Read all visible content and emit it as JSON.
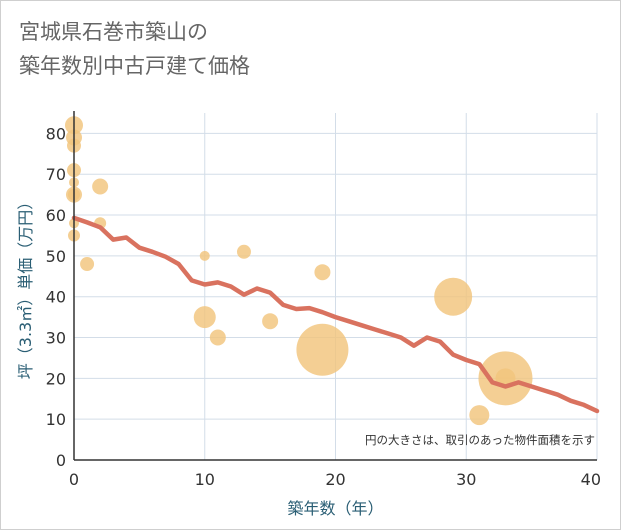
{
  "title_lines": [
    "宮城県石巻市築山の",
    "築年数別中古戸建て価格"
  ],
  "chart_data": {
    "type": "scatter",
    "xlabel": "築年数（年）",
    "ylabel": "坪（3.3㎡）単価（万円）",
    "xlim": [
      0,
      40
    ],
    "ylim": [
      0,
      85
    ],
    "x_ticks": [
      "0",
      "10",
      "20",
      "30",
      "40"
    ],
    "y_ticks": [
      "0",
      "10",
      "20",
      "30",
      "40",
      "50",
      "60",
      "70",
      "80"
    ],
    "note": "円の大きさは、取引のあった物件面積を示す",
    "grid": true,
    "colors": {
      "bubble": "#f2c47c",
      "line": "#d9725f",
      "grid": "#d3dde8",
      "axis": "#333333"
    },
    "scatter_points": [
      {
        "x": 0,
        "y": 82,
        "size": 9
      },
      {
        "x": 0,
        "y": 79,
        "size": 8
      },
      {
        "x": 0,
        "y": 77,
        "size": 7
      },
      {
        "x": 0,
        "y": 71,
        "size": 7
      },
      {
        "x": 0,
        "y": 68,
        "size": 5
      },
      {
        "x": 0,
        "y": 65,
        "size": 8
      },
      {
        "x": 0,
        "y": 65,
        "size": 6
      },
      {
        "x": 0,
        "y": 58,
        "size": 5
      },
      {
        "x": 0,
        "y": 55,
        "size": 6
      },
      {
        "x": 1,
        "y": 48,
        "size": 7
      },
      {
        "x": 2,
        "y": 67,
        "size": 8
      },
      {
        "x": 2,
        "y": 58,
        "size": 6
      },
      {
        "x": 10,
        "y": 50,
        "size": 5
      },
      {
        "x": 10,
        "y": 35,
        "size": 11
      },
      {
        "x": 11,
        "y": 30,
        "size": 8
      },
      {
        "x": 13,
        "y": 51,
        "size": 7
      },
      {
        "x": 15,
        "y": 34,
        "size": 8
      },
      {
        "x": 19,
        "y": 46,
        "size": 8
      },
      {
        "x": 19,
        "y": 27,
        "size": 26
      },
      {
        "x": 29,
        "y": 40,
        "size": 19
      },
      {
        "x": 31,
        "y": 11,
        "size": 10
      },
      {
        "x": 33,
        "y": 20,
        "size": 10
      },
      {
        "x": 33,
        "y": 20,
        "size": 27
      }
    ],
    "trend_line": [
      {
        "x": 0,
        "y": 59.3
      },
      {
        "x": 1,
        "y": 58.2
      },
      {
        "x": 2,
        "y": 57.0
      },
      {
        "x": 3,
        "y": 54.0
      },
      {
        "x": 4,
        "y": 54.5
      },
      {
        "x": 5,
        "y": 52.0
      },
      {
        "x": 6,
        "y": 51.0
      },
      {
        "x": 7,
        "y": 49.8
      },
      {
        "x": 8,
        "y": 48.0
      },
      {
        "x": 9,
        "y": 44.0
      },
      {
        "x": 10,
        "y": 43.0
      },
      {
        "x": 11,
        "y": 43.5
      },
      {
        "x": 12,
        "y": 42.5
      },
      {
        "x": 13,
        "y": 40.5
      },
      {
        "x": 14,
        "y": 42.0
      },
      {
        "x": 15,
        "y": 41.0
      },
      {
        "x": 16,
        "y": 38.0
      },
      {
        "x": 17,
        "y": 37.0
      },
      {
        "x": 18,
        "y": 37.2
      },
      {
        "x": 19,
        "y": 36.2
      },
      {
        "x": 20,
        "y": 35.0
      },
      {
        "x": 21,
        "y": 34.0
      },
      {
        "x": 22,
        "y": 33.0
      },
      {
        "x": 23,
        "y": 32.0
      },
      {
        "x": 24,
        "y": 31.0
      },
      {
        "x": 25,
        "y": 30.0
      },
      {
        "x": 26,
        "y": 28.0
      },
      {
        "x": 27,
        "y": 30.0
      },
      {
        "x": 28,
        "y": 29.0
      },
      {
        "x": 29,
        "y": 25.8
      },
      {
        "x": 30,
        "y": 24.5
      },
      {
        "x": 31,
        "y": 23.5
      },
      {
        "x": 32,
        "y": 19.0
      },
      {
        "x": 33,
        "y": 18.0
      },
      {
        "x": 34,
        "y": 19.0
      },
      {
        "x": 35,
        "y": 18.0
      },
      {
        "x": 36,
        "y": 17.0
      },
      {
        "x": 37,
        "y": 16.0
      },
      {
        "x": 38,
        "y": 14.5
      },
      {
        "x": 39,
        "y": 13.5
      },
      {
        "x": 40,
        "y": 12.0
      }
    ]
  }
}
